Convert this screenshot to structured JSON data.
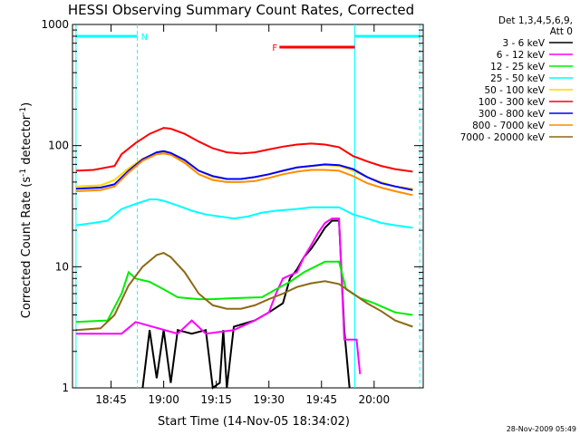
{
  "chart_data": {
    "type": "line",
    "title": "HESSI Observing Summary Count Rates, Corrected",
    "xlabel": "Start Time (14-Nov-05 18:34:02)",
    "ylabel_main": "Corrected Count Rate (s",
    "ylabel_sup1": "-1",
    "ylabel_mid": " detector",
    "ylabel_sup2": "-1",
    "ylabel_end": ")",
    "ylog": true,
    "xlim_min": [
      0,
      100
    ],
    "ylim": [
      1,
      1000
    ],
    "x_ticks": [
      {
        "min": 11,
        "label": "18:45"
      },
      {
        "min": 26,
        "label": "19:00"
      },
      {
        "min": 41,
        "label": "19:15"
      },
      {
        "min": 56,
        "label": "19:30"
      },
      {
        "min": 71,
        "label": "19:45"
      },
      {
        "min": 86,
        "label": "20:00"
      }
    ],
    "y_ticks": [
      {
        "value": 1,
        "label": "1"
      },
      {
        "value": 10,
        "label": "10"
      },
      {
        "value": 100,
        "label": "100"
      },
      {
        "value": 1000,
        "label": "1000"
      }
    ],
    "legend_header": [
      "Det 1,3,4,5,6,9,",
      "Att 0"
    ],
    "series": [
      {
        "name": "3 - 6 keV",
        "color": "#000000",
        "points": [
          [
            20,
            1.0
          ],
          [
            22,
            3.0
          ],
          [
            24,
            1.2
          ],
          [
            26,
            3.0
          ],
          [
            28,
            1.1
          ],
          [
            30,
            3.0
          ],
          [
            34,
            2.8
          ],
          [
            38,
            3.0
          ],
          [
            40,
            1.0
          ],
          [
            42,
            1.1
          ],
          [
            43,
            3.0
          ],
          [
            44,
            1.0
          ],
          [
            46,
            3.2
          ],
          [
            52,
            3.6
          ],
          [
            56,
            4.2
          ],
          [
            60,
            5.0
          ],
          [
            62,
            8.0
          ],
          [
            64,
            9.5
          ],
          [
            66,
            12
          ],
          [
            68,
            14
          ],
          [
            70,
            17
          ],
          [
            72,
            21
          ],
          [
            74,
            24
          ],
          [
            76,
            24
          ],
          [
            77.5,
            3.0
          ],
          [
            79,
            1.0
          ]
        ]
      },
      {
        "name": "6 - 12 keV",
        "color": "#ff00ff",
        "points": [
          [
            1,
            2.8
          ],
          [
            10,
            2.8
          ],
          [
            14,
            2.8
          ],
          [
            18,
            3.5
          ],
          [
            30,
            2.8
          ],
          [
            34,
            3.6
          ],
          [
            38,
            2.8
          ],
          [
            46,
            3.0
          ],
          [
            52,
            3.6
          ],
          [
            56,
            4.2
          ],
          [
            58,
            6.0
          ],
          [
            60,
            8.0
          ],
          [
            62,
            8.5
          ],
          [
            64,
            9.0
          ],
          [
            66,
            12
          ],
          [
            68,
            15
          ],
          [
            70,
            19
          ],
          [
            72,
            23
          ],
          [
            74,
            25
          ],
          [
            76,
            25
          ],
          [
            77.5,
            2.5
          ],
          [
            81,
            2.5
          ],
          [
            82,
            1.3
          ]
        ]
      },
      {
        "name": "12 - 25 keV",
        "color": "#00ee00",
        "points": [
          [
            1,
            3.5
          ],
          [
            10,
            3.6
          ],
          [
            14,
            6.0
          ],
          [
            16,
            9.0
          ],
          [
            18,
            8.0
          ],
          [
            22,
            7.5
          ],
          [
            26,
            6.5
          ],
          [
            30,
            5.6
          ],
          [
            36,
            5.4
          ],
          [
            40,
            5.4
          ],
          [
            46,
            5.5
          ],
          [
            54,
            5.6
          ],
          [
            58,
            6.5
          ],
          [
            62,
            7.5
          ],
          [
            66,
            9.0
          ],
          [
            72,
            11
          ],
          [
            76,
            11
          ],
          [
            78,
            6.5
          ],
          [
            82,
            5.5
          ],
          [
            86,
            5.0
          ],
          [
            92,
            4.2
          ],
          [
            97,
            4.0
          ]
        ]
      },
      {
        "name": "25 - 50 keV",
        "color": "#00ffff",
        "points": [
          [
            1,
            22
          ],
          [
            6,
            23
          ],
          [
            10,
            24
          ],
          [
            14,
            30
          ],
          [
            18,
            33
          ],
          [
            22,
            36
          ],
          [
            24,
            36
          ],
          [
            26,
            35
          ],
          [
            30,
            32
          ],
          [
            34,
            29
          ],
          [
            38,
            27
          ],
          [
            42,
            26
          ],
          [
            46,
            25
          ],
          [
            50,
            26
          ],
          [
            54,
            28
          ],
          [
            58,
            29
          ],
          [
            64,
            30
          ],
          [
            68,
            31
          ],
          [
            72,
            31
          ],
          [
            76,
            31
          ],
          [
            80,
            27
          ],
          [
            84,
            25
          ],
          [
            88,
            23
          ],
          [
            92,
            22
          ],
          [
            97,
            21
          ]
        ]
      },
      {
        "name": "50 - 100 keV",
        "color": "#ffd700",
        "points": [
          [
            1,
            46
          ],
          [
            8,
            47
          ],
          [
            12,
            52
          ],
          [
            16,
            65
          ],
          [
            20,
            78
          ],
          [
            24,
            87
          ],
          [
            26,
            88
          ],
          [
            28,
            85
          ],
          [
            32,
            75
          ],
          [
            36,
            62
          ],
          [
            40,
            55
          ],
          [
            44,
            53
          ],
          [
            48,
            53
          ],
          [
            52,
            55
          ],
          [
            56,
            58
          ],
          [
            60,
            62
          ],
          [
            64,
            66
          ],
          [
            68,
            68
          ],
          [
            72,
            69
          ],
          [
            76,
            68
          ],
          [
            80,
            62
          ],
          [
            84,
            55
          ],
          [
            88,
            50
          ],
          [
            92,
            46
          ],
          [
            97,
            44
          ]
        ]
      },
      {
        "name": "100 - 300 keV",
        "color": "#ff0000",
        "points": [
          [
            1,
            62
          ],
          [
            6,
            63
          ],
          [
            12,
            68
          ],
          [
            14,
            85
          ],
          [
            18,
            105
          ],
          [
            22,
            125
          ],
          [
            26,
            140
          ],
          [
            28,
            138
          ],
          [
            32,
            125
          ],
          [
            36,
            108
          ],
          [
            40,
            95
          ],
          [
            44,
            88
          ],
          [
            48,
            86
          ],
          [
            52,
            88
          ],
          [
            56,
            93
          ],
          [
            60,
            98
          ],
          [
            64,
            102
          ],
          [
            68,
            104
          ],
          [
            72,
            102
          ],
          [
            76,
            97
          ],
          [
            80,
            82
          ],
          [
            84,
            74
          ],
          [
            88,
            68
          ],
          [
            92,
            64
          ],
          [
            97,
            61
          ]
        ]
      },
      {
        "name": "300 - 800 keV",
        "color": "#0000ff",
        "points": [
          [
            1,
            44
          ],
          [
            8,
            45
          ],
          [
            12,
            48
          ],
          [
            16,
            62
          ],
          [
            20,
            77
          ],
          [
            24,
            88
          ],
          [
            26,
            90
          ],
          [
            28,
            87
          ],
          [
            32,
            76
          ],
          [
            36,
            62
          ],
          [
            40,
            56
          ],
          [
            44,
            53
          ],
          [
            48,
            53
          ],
          [
            52,
            55
          ],
          [
            56,
            58
          ],
          [
            60,
            62
          ],
          [
            64,
            66
          ],
          [
            68,
            68
          ],
          [
            72,
            70
          ],
          [
            76,
            69
          ],
          [
            80,
            64
          ],
          [
            84,
            55
          ],
          [
            88,
            49
          ],
          [
            92,
            46
          ],
          [
            97,
            43
          ]
        ]
      },
      {
        "name": "800 - 7000 keV",
        "color": "#ff8c00",
        "points": [
          [
            1,
            42
          ],
          [
            8,
            43
          ],
          [
            12,
            46
          ],
          [
            16,
            60
          ],
          [
            20,
            75
          ],
          [
            24,
            85
          ],
          [
            26,
            86
          ],
          [
            28,
            84
          ],
          [
            32,
            72
          ],
          [
            36,
            58
          ],
          [
            40,
            52
          ],
          [
            44,
            50
          ],
          [
            48,
            50
          ],
          [
            52,
            51
          ],
          [
            56,
            54
          ],
          [
            60,
            58
          ],
          [
            64,
            61
          ],
          [
            68,
            63
          ],
          [
            72,
            63
          ],
          [
            76,
            62
          ],
          [
            80,
            56
          ],
          [
            84,
            49
          ],
          [
            88,
            45
          ],
          [
            92,
            42
          ],
          [
            97,
            39
          ]
        ]
      },
      {
        "name": "7000 - 20000 keV",
        "color": "#8b6914",
        "points": [
          [
            1,
            3.0
          ],
          [
            8,
            3.1
          ],
          [
            12,
            4.0
          ],
          [
            16,
            7.0
          ],
          [
            20,
            10.0
          ],
          [
            24,
            12.5
          ],
          [
            26,
            13
          ],
          [
            28,
            12
          ],
          [
            32,
            9.0
          ],
          [
            36,
            6.0
          ],
          [
            40,
            4.8
          ],
          [
            44,
            4.5
          ],
          [
            48,
            4.5
          ],
          [
            52,
            4.8
          ],
          [
            56,
            5.4
          ],
          [
            60,
            6.0
          ],
          [
            64,
            6.8
          ],
          [
            68,
            7.3
          ],
          [
            72,
            7.6
          ],
          [
            76,
            7.2
          ],
          [
            80,
            6.0
          ],
          [
            84,
            5.0
          ],
          [
            88,
            4.3
          ],
          [
            92,
            3.6
          ],
          [
            97,
            3.2
          ]
        ]
      }
    ],
    "annotations": [
      {
        "type": "cyan_bar",
        "label": "N",
        "color": "#00ffff",
        "segments": [
          [
            1,
            18.5
          ],
          [
            80.5,
            99
          ]
        ],
        "level": 800
      },
      {
        "type": "red_bar",
        "label": "F",
        "color": "#ff0000",
        "segments": [
          [
            59,
            80.5
          ]
        ],
        "level": 650
      }
    ],
    "vertical_markers": [
      {
        "min": 1,
        "style": "solid"
      },
      {
        "min": 18.5,
        "style": "dashed"
      },
      {
        "min": 80.5,
        "style": "solid"
      },
      {
        "min": 99,
        "style": "dashed"
      }
    ]
  },
  "footer": {
    "timestamp": "28-Nov-2009 05:49"
  }
}
